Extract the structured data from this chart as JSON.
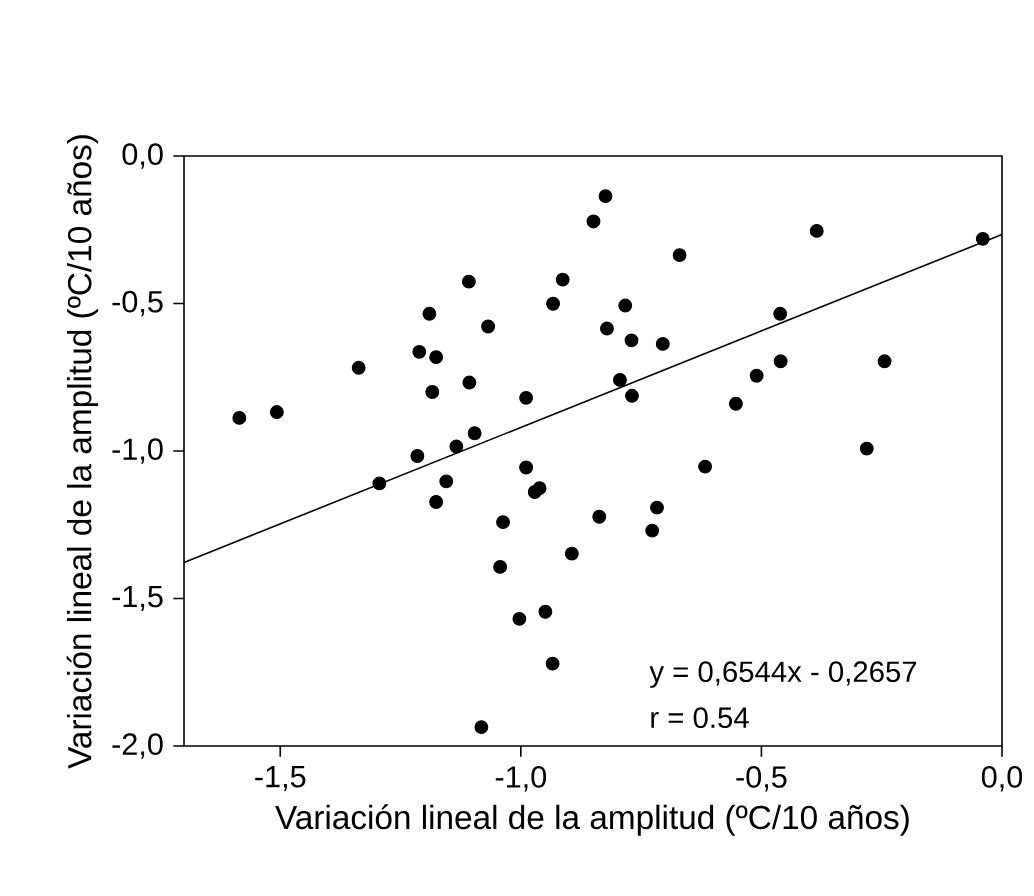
{
  "chart_data": {
    "type": "scatter",
    "xlabel": "Variación lineal de la amplitud (ºC/10 años)",
    "ylabel": "Variación lineal de la amplitud (ºC/10 años)",
    "xlim": [
      -1.7,
      0
    ],
    "ylim": [
      -2.0,
      0
    ],
    "xticks": [
      {
        "value": -1.5,
        "label": "-1,5"
      },
      {
        "value": -1.0,
        "label": "-1,0"
      },
      {
        "value": -0.5,
        "label": "-0,5"
      },
      {
        "value": 0,
        "label": "0,0"
      }
    ],
    "yticks": [
      {
        "value": -2.0,
        "label": "-2,0"
      },
      {
        "value": -1.5,
        "label": "-1,5"
      },
      {
        "value": -1.0,
        "label": "-1,0"
      },
      {
        "value": -0.5,
        "label": "-0,5"
      },
      {
        "value": 0,
        "label": "0,0"
      }
    ],
    "series": [
      {
        "marker": "circle",
        "color": "#000000",
        "x": [
          -1.585,
          -1.507,
          -1.337,
          -0.824,
          -0.849,
          -0.67,
          -1.108,
          -0.913,
          -1.19,
          -0.933,
          -0.783,
          -1.068,
          -0.821,
          -1.211,
          -1.176,
          -0.77,
          -0.705,
          -1.184,
          -1.107,
          -0.794,
          -0.769,
          -0.989,
          -1.096,
          -1.134,
          -1.215,
          -1.294,
          -1.155,
          -0.989,
          -0.961,
          -0.971,
          -1.176,
          -1.037,
          -0.837,
          -0.717,
          -0.727,
          -0.894,
          -1.043,
          -0.949,
          -1.003,
          -0.934,
          -1.082,
          -0.385,
          -0.04,
          -0.461,
          -0.46,
          -0.244,
          -0.51,
          -0.553,
          -0.281,
          -0.617
        ],
        "values": [
          -0.888,
          -0.868,
          -0.718,
          -0.136,
          -0.222,
          -0.336,
          -0.426,
          -0.419,
          -0.535,
          -0.501,
          -0.507,
          -0.578,
          -0.585,
          -0.664,
          -0.682,
          -0.625,
          -0.637,
          -0.8,
          -0.768,
          -0.759,
          -0.813,
          -0.82,
          -0.94,
          -0.985,
          -1.017,
          -1.11,
          -1.103,
          -1.056,
          -1.126,
          -1.139,
          -1.173,
          -1.241,
          -1.223,
          -1.192,
          -1.27,
          -1.348,
          -1.393,
          -1.545,
          -1.569,
          -1.721,
          -1.936,
          -0.254,
          -0.281,
          -0.535,
          -0.696,
          -0.696,
          -0.745,
          -0.84,
          -0.992,
          -1.053
        ]
      },
      {
        "type": "line",
        "marker": "none",
        "color": "#000000",
        "x": [
          -1.7,
          0
        ],
        "values": [
          -1.378,
          -0.266
        ]
      }
    ],
    "annotations": [
      "y = 0,6544x - 0,2657",
      "r = 0.54"
    ]
  }
}
